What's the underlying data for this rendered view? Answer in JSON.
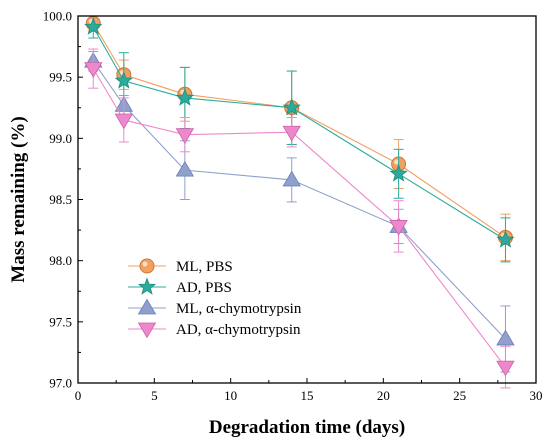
{
  "chart_data": {
    "type": "line",
    "xlabel": "Degradation time (days)",
    "ylabel": "Mass remaining (%)",
    "xlim": [
      0,
      30
    ],
    "ylim": [
      97.0,
      100.0
    ],
    "xticks": [
      0,
      5,
      10,
      15,
      20,
      25,
      30
    ],
    "yticks": [
      97.0,
      97.5,
      98.0,
      98.5,
      99.0,
      99.5,
      100.0
    ],
    "xtick_labels": [
      "0",
      "5",
      "10",
      "15",
      "20",
      "25",
      "30"
    ],
    "ytick_labels": [
      "97.0",
      "97.5",
      "98.0",
      "98.5",
      "99.0",
      "99.5",
      "100.0"
    ],
    "grid": false,
    "legend_position": "bottom-left",
    "series": [
      {
        "name": "ML, PBS",
        "color": "#f0a060",
        "marker": "circle",
        "x": [
          1,
          3,
          7,
          14,
          21,
          28
        ],
        "y": [
          99.94,
          99.52,
          99.36,
          99.25,
          98.79,
          98.19
        ],
        "err": [
          0.06,
          0.12,
          0.22,
          0.3,
          0.2,
          0.19
        ]
      },
      {
        "name": "AD, PBS",
        "color": "#2aab9b",
        "marker": "star",
        "x": [
          1,
          3,
          7,
          14,
          21,
          28
        ],
        "y": [
          99.91,
          99.47,
          99.33,
          99.25,
          98.71,
          98.17
        ],
        "err": [
          0.09,
          0.23,
          0.25,
          0.3,
          0.2,
          0.18
        ]
      },
      {
        "name": "ML, α-chymotrypsin",
        "color": "#8fa0cc",
        "marker": "triangle-up",
        "x": [
          1,
          3,
          7,
          14,
          21,
          28
        ],
        "y": [
          99.63,
          99.27,
          98.74,
          98.66,
          98.28,
          97.36
        ],
        "err": [
          0.08,
          0.08,
          0.24,
          0.18,
          0.14,
          0.27
        ]
      },
      {
        "name": "AD, α-chymotrypsin",
        "color": "#ee88cc",
        "marker": "triangle-down",
        "x": [
          1,
          3,
          7,
          14,
          21,
          28
        ],
        "y": [
          99.57,
          99.15,
          99.03,
          99.05,
          98.28,
          97.13
        ],
        "err": [
          0.16,
          0.18,
          0.14,
          0.12,
          0.21,
          0.17
        ]
      }
    ]
  }
}
